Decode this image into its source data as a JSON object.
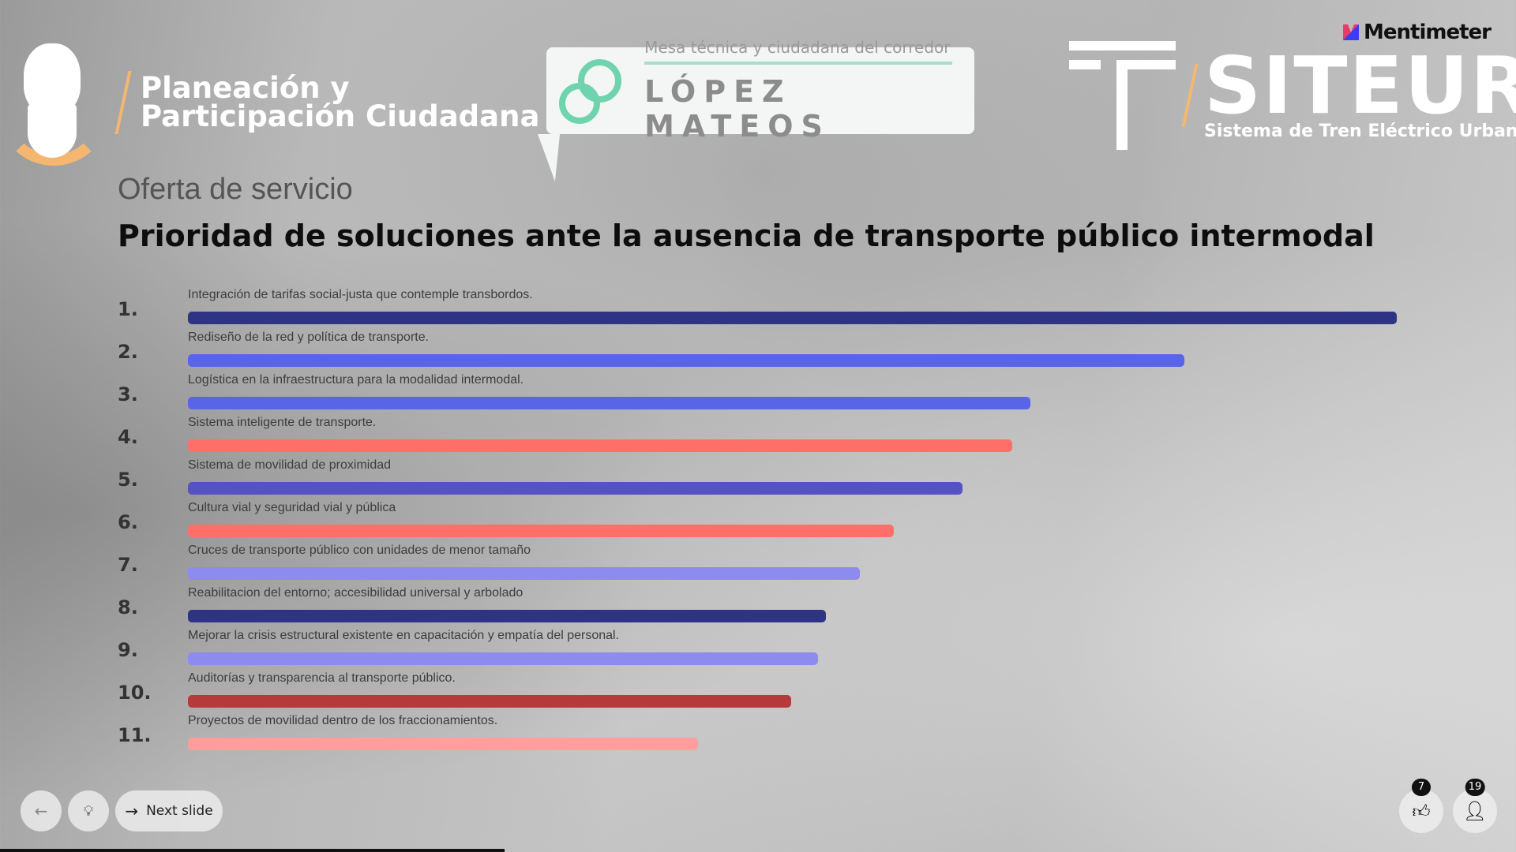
{
  "logos": {
    "ppc": {
      "line1": "Planeación y",
      "line2": "Participación Ciudadana"
    },
    "lopez_mateos": {
      "subtitle": "Mesa técnica y ciudadana del corredor",
      "title": "LÓPEZ MATEOS"
    },
    "siteur": {
      "name": "SITEUR",
      "subtitle": "Sistema de Tren Eléctrico Urbano"
    },
    "mentimeter": "Mentimeter"
  },
  "slide": {
    "subtitle": "Oferta de servicio",
    "heading": "Prioridad de soluciones ante la ausencia de transporte público intermodal",
    "items": [
      {
        "rank": "1.",
        "label": "Integración de tarifas social-justa que contemple transbordos.",
        "score": 1.0,
        "color": "#2e3483"
      },
      {
        "rank": "2.",
        "label": "Rediseño de la red y política de transporte.",
        "score": 0.824,
        "color": "#5865e8"
      },
      {
        "rank": "3.",
        "label": "Logística en la infraestructura para la modalidad intermodal.",
        "score": 0.697,
        "color": "#5865e8"
      },
      {
        "rank": "4.",
        "label": "Sistema inteligente de transporte.",
        "score": 0.682,
        "color": "#ff6f6a"
      },
      {
        "rank": "5.",
        "label": "Sistema de movilidad de proximidad",
        "score": 0.641,
        "color": "#5552c4"
      },
      {
        "rank": "6.",
        "label": "Cultura vial y seguridad vial y pública",
        "score": 0.584,
        "color": "#ff6f6a"
      },
      {
        "rank": "7.",
        "label": "Cruces de transporte público con unidades de menor tamaño",
        "score": 0.556,
        "color": "#8d8bee"
      },
      {
        "rank": "8.",
        "label": "Reabilitacion del entorno; accesibilidad universal y arbolado",
        "score": 0.528,
        "color": "#2e3483"
      },
      {
        "rank": "9.",
        "label": "Mejorar la crisis estructural existente en capacitación y empatía del personal.",
        "score": 0.521,
        "color": "#8d8bee"
      },
      {
        "rank": "10.",
        "label": "Auditorías y transparencia al transporte público.",
        "score": 0.499,
        "color": "#b43a3c"
      },
      {
        "rank": "11.",
        "label": "Proyectos de movilidad dentro de los fraccionamientos.",
        "score": 0.422,
        "color": "#ff9e9c"
      }
    ]
  },
  "controls": {
    "next_label": "Next slide",
    "reactions_count": "7",
    "participants_count": "19"
  },
  "progress": 0.333
}
